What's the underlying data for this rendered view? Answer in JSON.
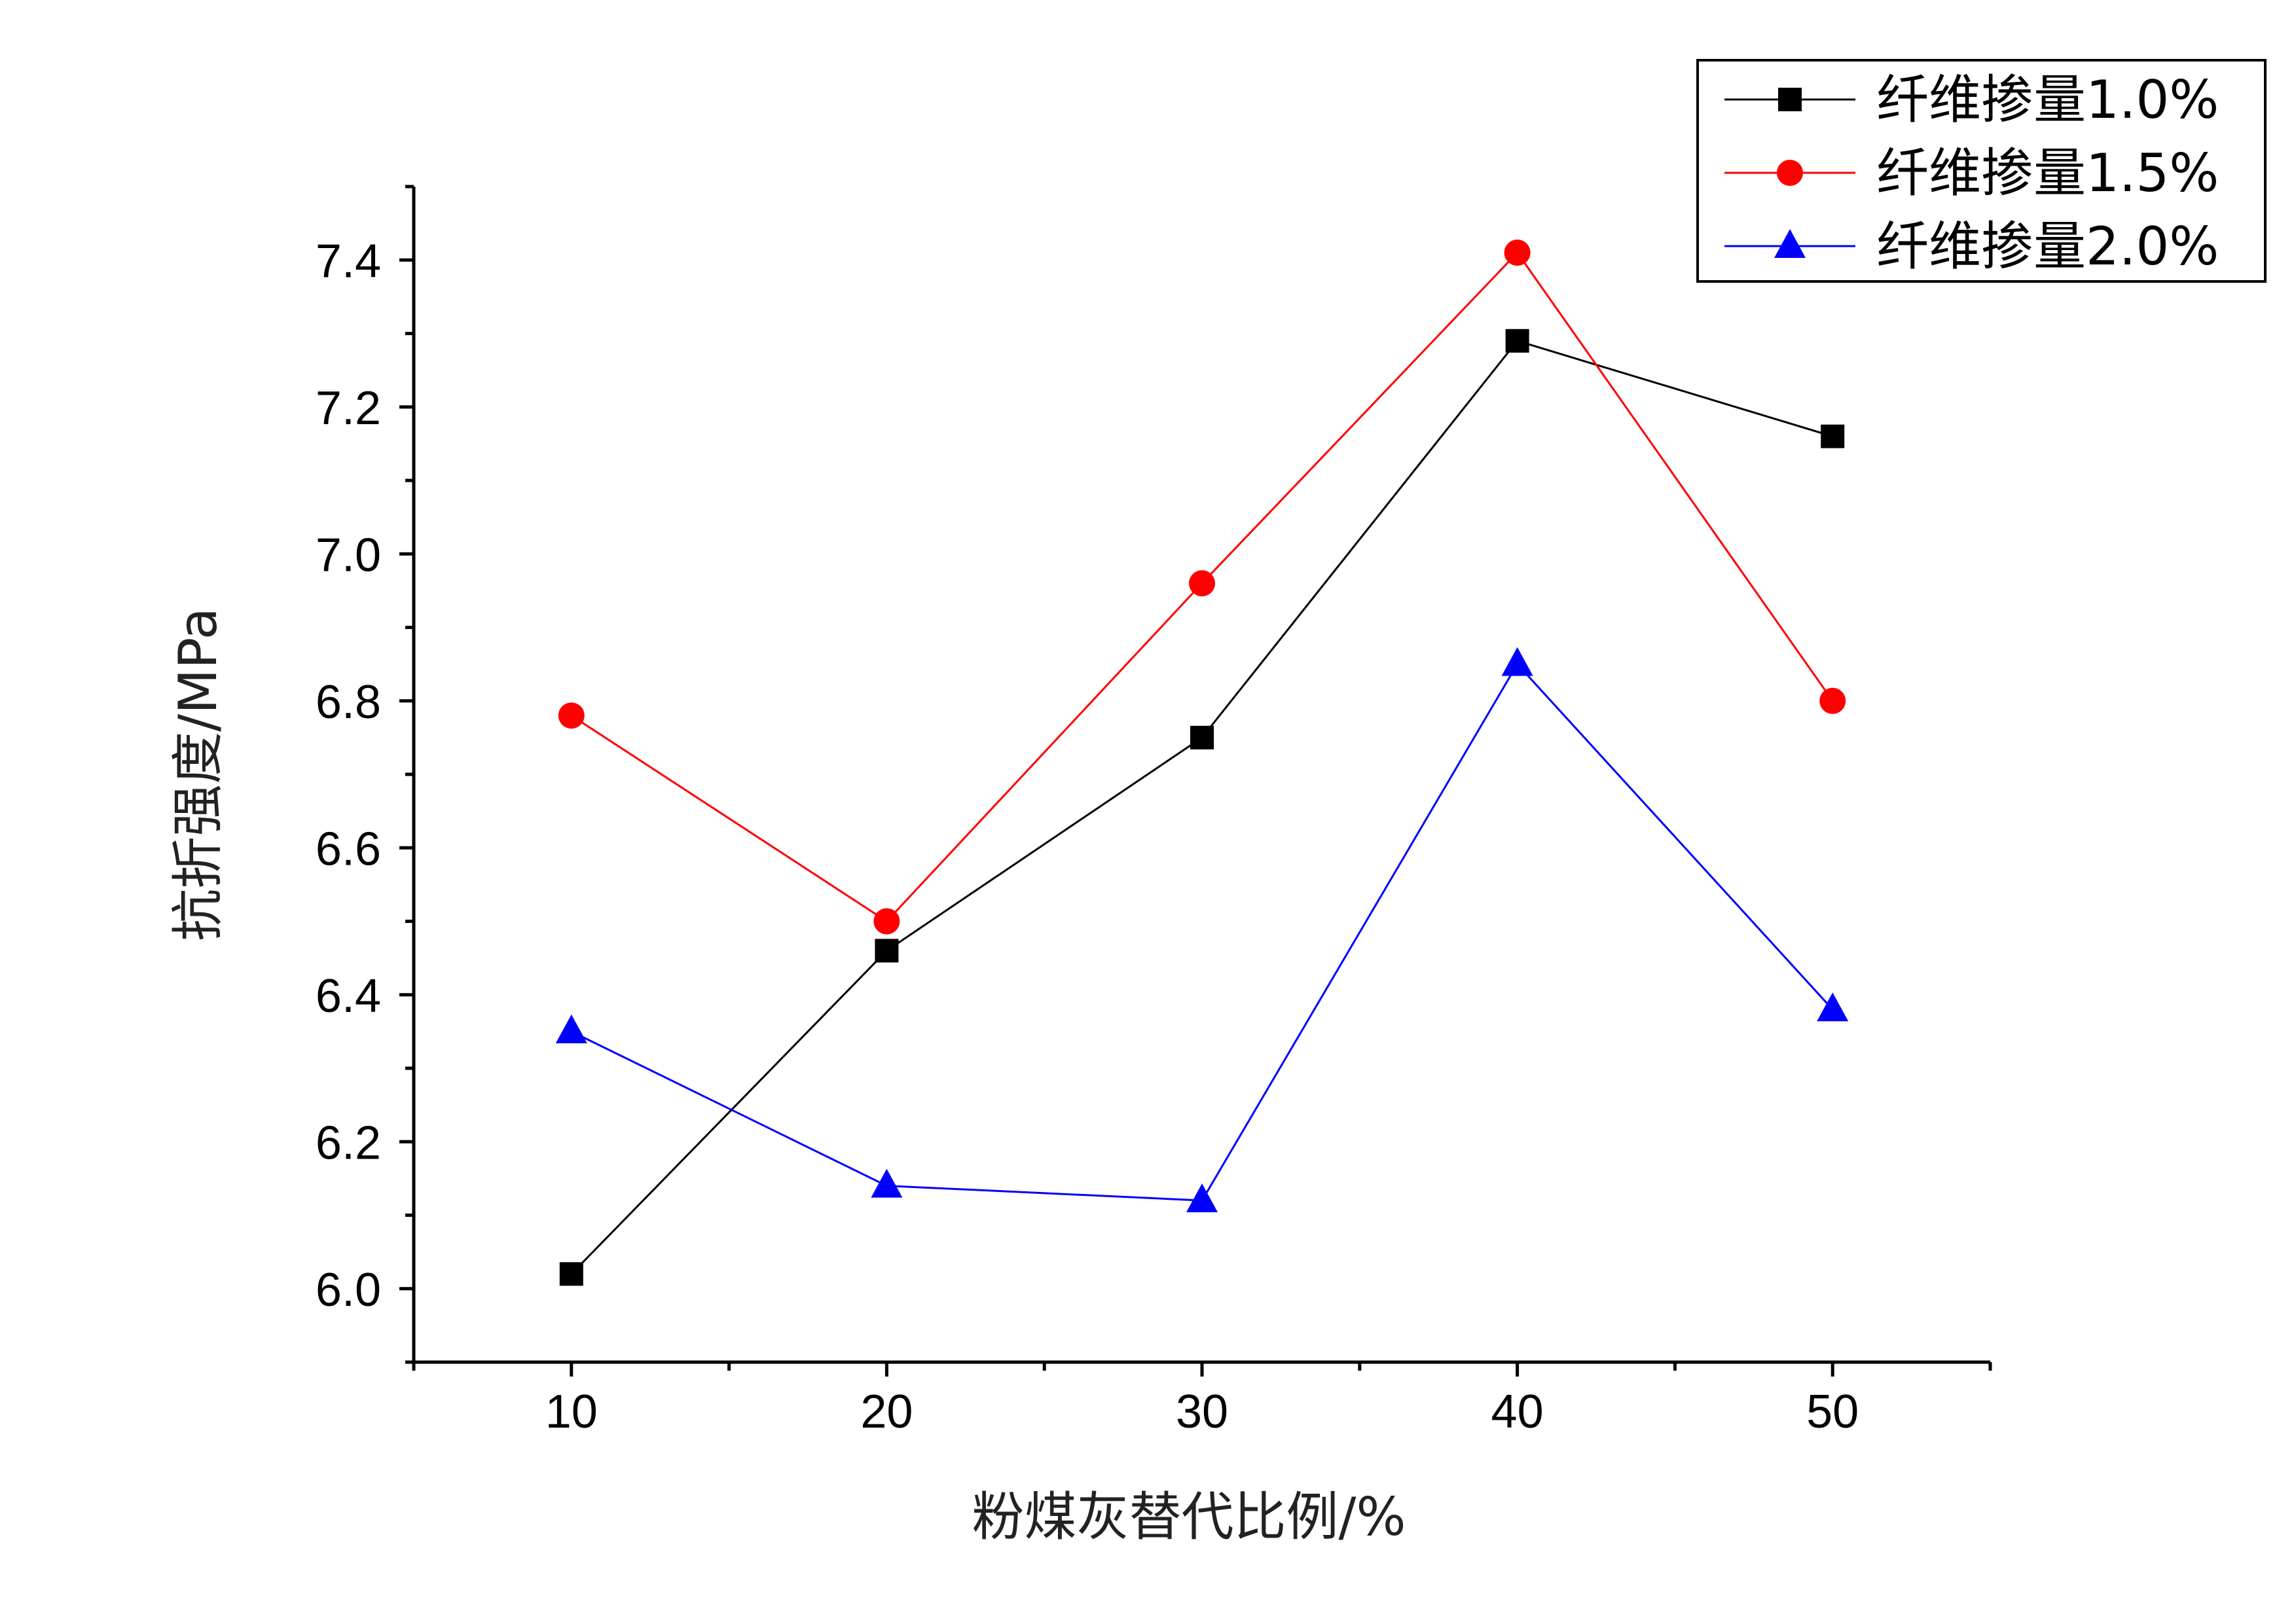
{
  "chart_data": {
    "type": "line",
    "title": "",
    "xlabel": "粉煤灰替代比例/%",
    "ylabel": "抗折强度/MPa",
    "x": [
      10,
      20,
      30,
      40,
      50
    ],
    "xlim": [
      5,
      55
    ],
    "ylim": [
      5.9,
      7.5
    ],
    "xticks": [
      10,
      20,
      30,
      40,
      50
    ],
    "xtick_labels": [
      "10",
      "20",
      "30",
      "40",
      "50"
    ],
    "yticks": [
      6.0,
      6.2,
      6.4,
      6.6,
      6.8,
      7.0,
      7.2,
      7.4
    ],
    "ytick_labels": [
      "6.0",
      "6.2",
      "6.4",
      "6.6",
      "6.8",
      "7.0",
      "7.2",
      "7.4"
    ],
    "grid": false,
    "legend_position": "top-right",
    "series": [
      {
        "name": "纤维掺量1.0%",
        "values": [
          6.02,
          6.46,
          6.75,
          7.29,
          7.16
        ],
        "color": "#000000",
        "marker": "square"
      },
      {
        "name": "纤维掺量1.5%",
        "values": [
          6.78,
          6.5,
          6.96,
          7.41,
          6.8
        ],
        "color": "#ff0000",
        "marker": "circle"
      },
      {
        "name": "纤维掺量2.0%",
        "values": [
          6.35,
          6.14,
          6.12,
          6.85,
          6.38
        ],
        "color": "#0000ff",
        "marker": "triangle"
      }
    ]
  }
}
